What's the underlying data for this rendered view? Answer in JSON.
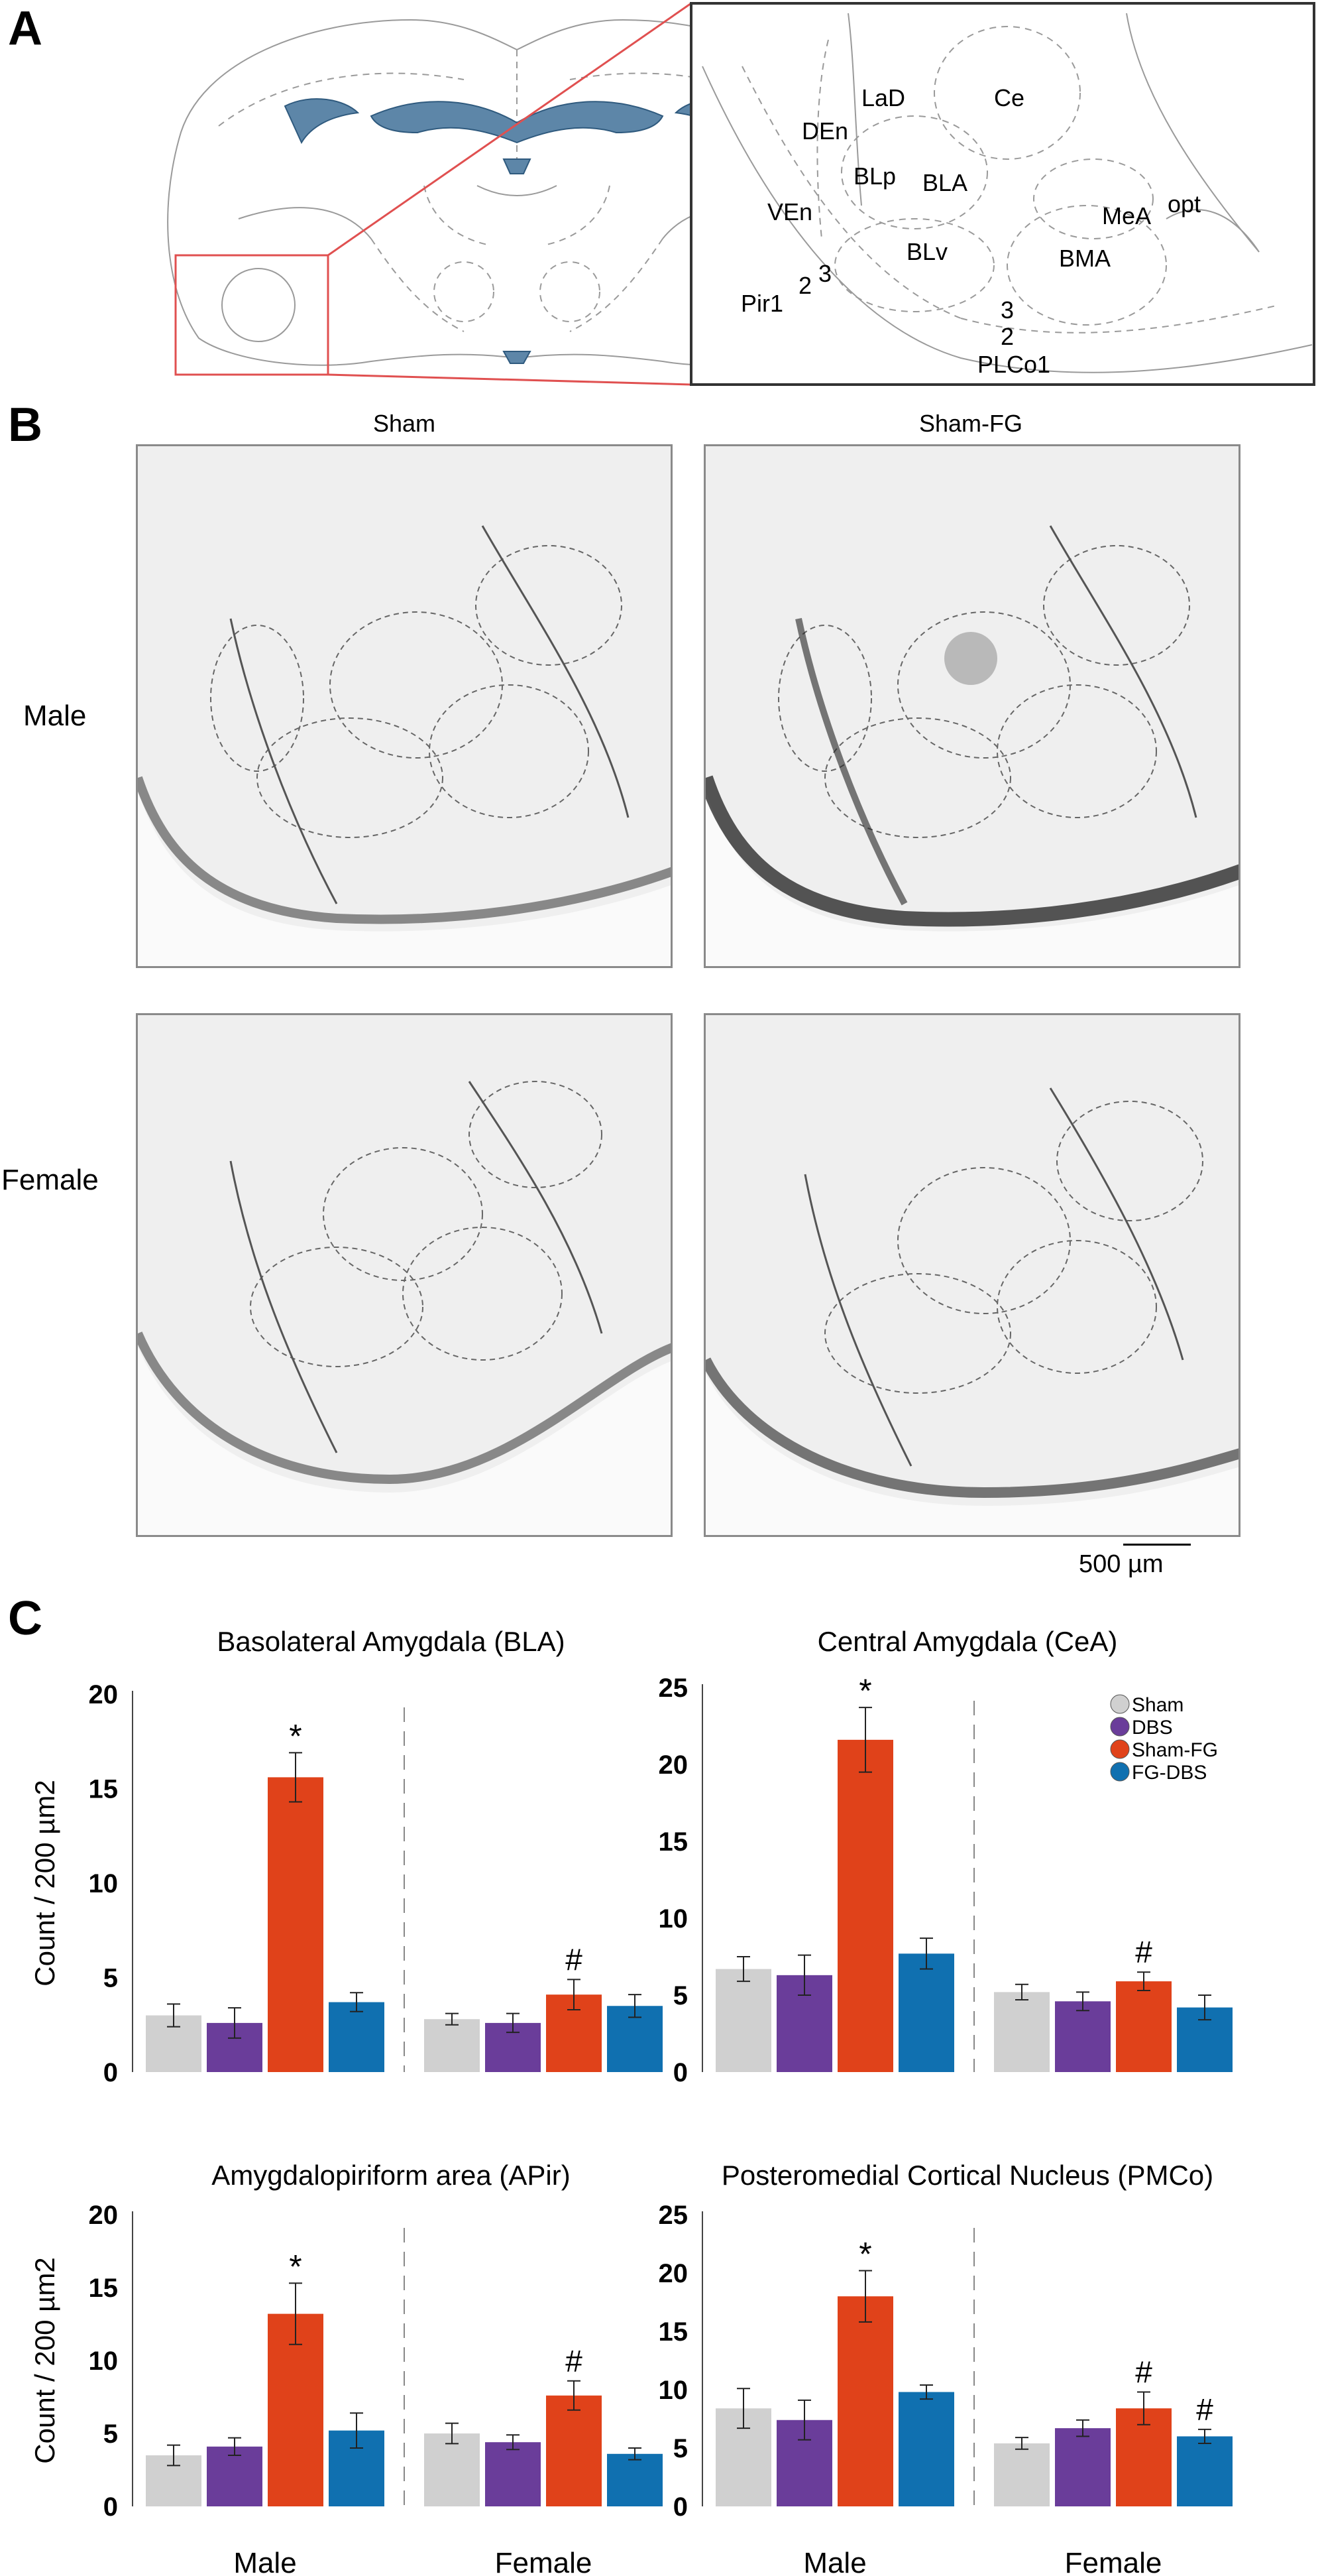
{
  "panels": {
    "a": "A",
    "b": "B",
    "c": "C"
  },
  "atlas_labels": {
    "ce": "Ce",
    "lad": "LaD",
    "den": "DEn",
    "blp": "BLp",
    "bla": "BLA",
    "ven": "VEn",
    "blv": "BLv",
    "mea": "MeA",
    "opt": "opt",
    "bma": "BMA",
    "pir1": "Pir1",
    "n2a": "2",
    "n3a": "3",
    "n3b": "3",
    "n2b": "2",
    "plco1": "PLCo1"
  },
  "micrographs": {
    "col_sham": "Sham",
    "col_shamfg": "Sham-FG",
    "row_male": "Male",
    "row_female": "Female",
    "scale_bar": "500 µm"
  },
  "colors": {
    "Sham": "#d0d0d0",
    "DBS": "#6a3d9a",
    "Sham-FG": "#e0421a",
    "FG-DBS": "#1070b0"
  },
  "legend": [
    "Sham",
    "DBS",
    "Sham-FG",
    "FG-DBS"
  ],
  "chart_data": [
    {
      "type": "bar",
      "title": "Basolateral Amygdala (BLA)",
      "ylabel": "Count / 200 µm2",
      "groups": [
        "Male",
        "Female"
      ],
      "series": [
        {
          "name": "Sham",
          "values": [
            3.0,
            2.8
          ],
          "errors": [
            0.6,
            0.3
          ]
        },
        {
          "name": "DBS",
          "values": [
            2.6,
            2.6
          ],
          "errors": [
            0.8,
            0.5
          ]
        },
        {
          "name": "Sham-FG",
          "values": [
            15.6,
            4.1
          ],
          "errors": [
            1.3,
            0.8
          ]
        },
        {
          "name": "FG-DBS",
          "values": [
            3.7,
            3.5
          ],
          "errors": [
            0.5,
            0.6
          ]
        }
      ],
      "annotations": [
        {
          "group": 0,
          "series": 2,
          "mark": "*"
        },
        {
          "group": 1,
          "series": 2,
          "mark": "#"
        }
      ],
      "ylim": [
        0,
        20
      ],
      "yticks": [
        0,
        5,
        10,
        15,
        20
      ]
    },
    {
      "type": "bar",
      "title": "Central Amygdala (CeA)",
      "ylabel": "",
      "groups": [
        "Male",
        "Female"
      ],
      "series": [
        {
          "name": "Sham",
          "values": [
            6.7,
            5.2
          ],
          "errors": [
            0.8,
            0.5
          ]
        },
        {
          "name": "DBS",
          "values": [
            6.3,
            4.6
          ],
          "errors": [
            1.3,
            0.6
          ]
        },
        {
          "name": "Sham-FG",
          "values": [
            21.6,
            5.9
          ],
          "errors": [
            2.1,
            0.6
          ]
        },
        {
          "name": "FG-DBS",
          "values": [
            7.7,
            4.2
          ],
          "errors": [
            1.0,
            0.8
          ]
        }
      ],
      "annotations": [
        {
          "group": 0,
          "series": 2,
          "mark": "*"
        },
        {
          "group": 1,
          "series": 2,
          "mark": "#"
        }
      ],
      "ylim": [
        0,
        25
      ],
      "yticks": [
        0,
        5,
        10,
        15,
        20,
        25
      ],
      "show_legend": true
    },
    {
      "type": "bar",
      "title": "Amygdalopiriform area (APir)",
      "ylabel": "Count / 200 µm2",
      "groups": [
        "Male",
        "Female"
      ],
      "series": [
        {
          "name": "Sham",
          "values": [
            3.5,
            5.0
          ],
          "errors": [
            0.7,
            0.7
          ]
        },
        {
          "name": "DBS",
          "values": [
            4.1,
            4.4
          ],
          "errors": [
            0.6,
            0.5
          ]
        },
        {
          "name": "Sham-FG",
          "values": [
            13.2,
            7.6
          ],
          "errors": [
            2.1,
            1.0
          ]
        },
        {
          "name": "FG-DBS",
          "values": [
            5.2,
            3.6
          ],
          "errors": [
            1.2,
            0.4
          ]
        }
      ],
      "annotations": [
        {
          "group": 0,
          "series": 2,
          "mark": "*"
        },
        {
          "group": 1,
          "series": 2,
          "mark": "#"
        }
      ],
      "ylim": [
        0,
        20
      ],
      "yticks": [
        0,
        5,
        10,
        15,
        20
      ],
      "xlabels": [
        "Male",
        "Female"
      ]
    },
    {
      "type": "bar",
      "title": "Posteromedial Cortical Nucleus (PMCo)",
      "ylabel": "",
      "groups": [
        "Male",
        "Female"
      ],
      "series": [
        {
          "name": "Sham",
          "values": [
            8.4,
            5.4
          ],
          "errors": [
            1.7,
            0.5
          ]
        },
        {
          "name": "DBS",
          "values": [
            7.4,
            6.7
          ],
          "errors": [
            1.7,
            0.7
          ]
        },
        {
          "name": "Sham-FG",
          "values": [
            18.0,
            8.4
          ],
          "errors": [
            2.2,
            1.4
          ]
        },
        {
          "name": "FG-DBS",
          "values": [
            9.8,
            6.0
          ],
          "errors": [
            0.6,
            0.6
          ]
        }
      ],
      "annotations": [
        {
          "group": 0,
          "series": 2,
          "mark": "*"
        },
        {
          "group": 1,
          "series": 2,
          "mark": "#"
        },
        {
          "group": 1,
          "series": 3,
          "mark": "#"
        }
      ],
      "ylim": [
        0,
        25
      ],
      "yticks": [
        0,
        5,
        10,
        15,
        20,
        25
      ],
      "xlabels": [
        "Male",
        "Female"
      ]
    }
  ]
}
